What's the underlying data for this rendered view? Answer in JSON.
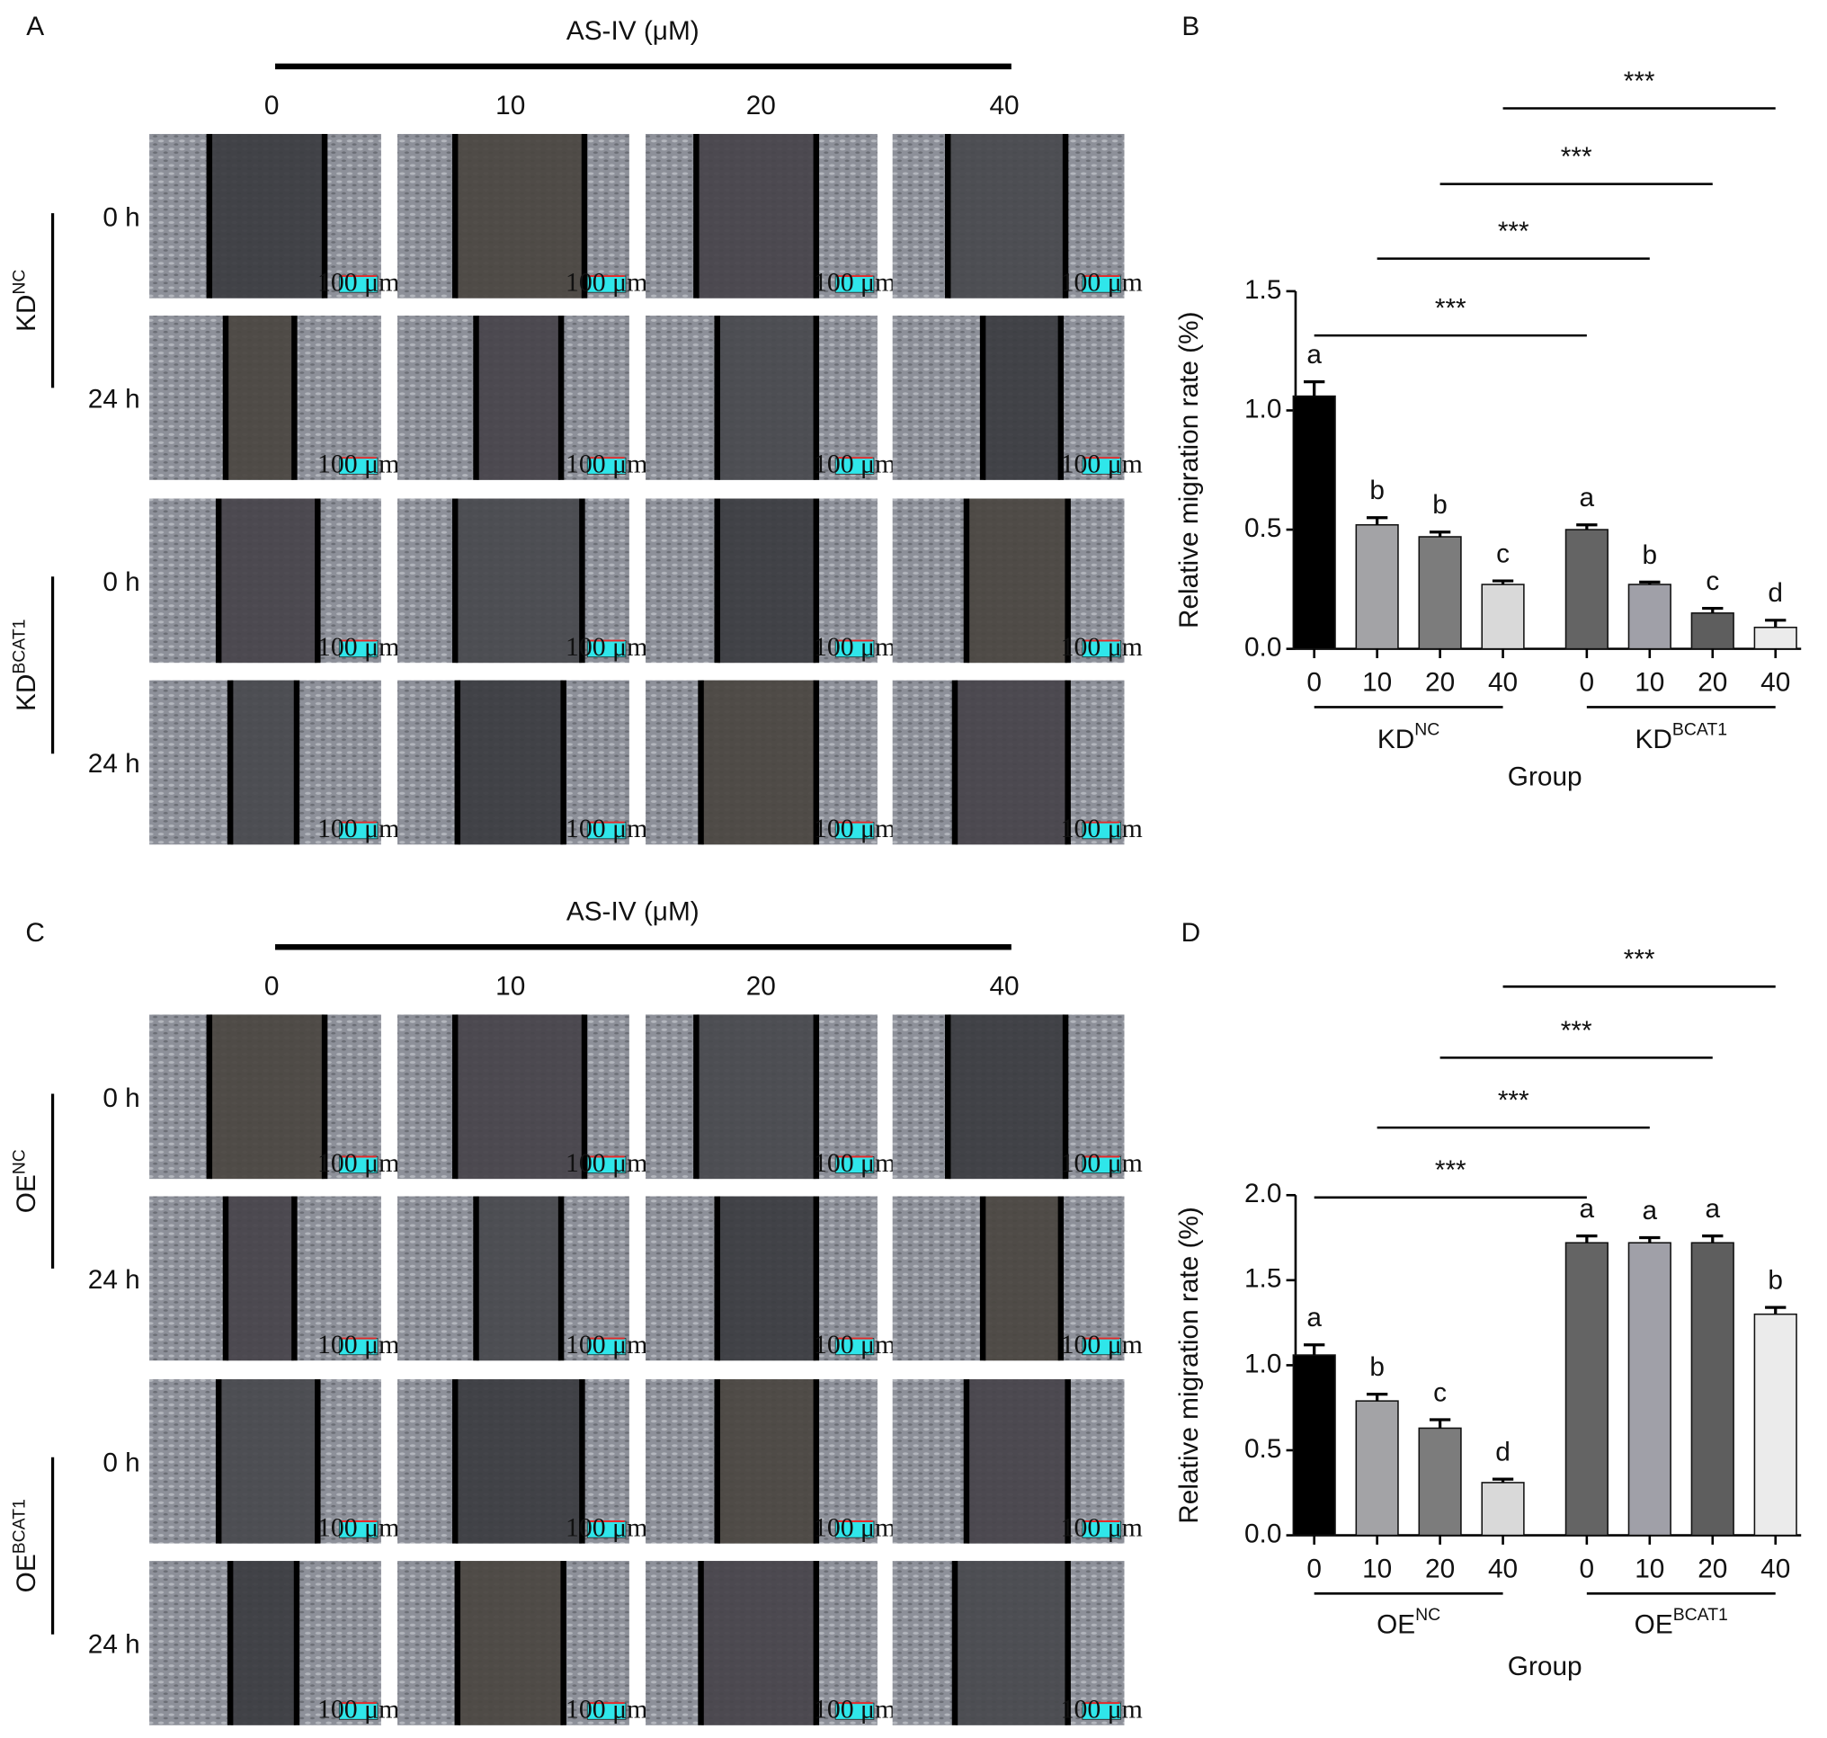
{
  "panel_labels": [
    "A",
    "B",
    "C",
    "D"
  ],
  "image_panels": [
    {
      "treatment_label": "AS-IV (μM)",
      "doses": [
        "0",
        "10",
        "20",
        "40"
      ],
      "times": [
        "0 h",
        "24 h"
      ],
      "scale_bar": "100 μm",
      "groups": [
        {
          "name": "KD",
          "superscript": "NC"
        },
        {
          "name": "KD",
          "superscript": "BCAT1"
        }
      ]
    },
    {
      "treatment_label": "AS-IV (μM)",
      "doses": [
        "0",
        "10",
        "20",
        "40"
      ],
      "times": [
        "0 h",
        "24 h"
      ],
      "scale_bar": "100 μm",
      "groups": [
        {
          "name": "OE",
          "superscript": "NC"
        },
        {
          "name": "OE",
          "superscript": "BCAT1"
        }
      ]
    }
  ],
  "chart_data": [
    {
      "type": "bar",
      "y_label": "Relative migration rate (%)",
      "x_label": "Group",
      "categories": [
        "0",
        "10",
        "20",
        "40",
        "0",
        "10",
        "20",
        "40"
      ],
      "groups": [
        {
          "name": "KD",
          "superscript": "NC"
        },
        {
          "name": "KD",
          "superscript": "BCAT1"
        }
      ],
      "values": [
        1.06,
        0.52,
        0.47,
        0.27,
        0.5,
        0.27,
        0.15,
        0.09
      ],
      "errors": [
        0.06,
        0.03,
        0.02,
        0.015,
        0.02,
        0.01,
        0.02,
        0.03
      ],
      "annotations": [
        "a",
        "b",
        "b",
        "c",
        "a",
        "b",
        "c",
        "d"
      ],
      "colors": [
        "#000000",
        "#a3a3a6",
        "#7c7c7c",
        "#d9d9d9",
        "#646464",
        "#a0a0a8",
        "#5e5e5e",
        "#ebebeb"
      ],
      "significance": [
        "***",
        "***",
        "***",
        "***"
      ],
      "ylim": [
        0,
        1.5
      ],
      "yticks": [
        {
          "value": 0,
          "label": "0.0"
        },
        0.5,
        {
          "value": 1,
          "label": "1.0"
        },
        1.5
      ]
    },
    {
      "type": "bar",
      "y_label": "Relative migration rate (%)",
      "x_label": "Group",
      "categories": [
        "0",
        "10",
        "20",
        "40",
        "0",
        "10",
        "20",
        "40"
      ],
      "groups": [
        {
          "name": "OE",
          "superscript": "NC"
        },
        {
          "name": "OE",
          "superscript": "BCAT1"
        }
      ],
      "values": [
        1.06,
        0.79,
        0.63,
        0.31,
        1.72,
        1.72,
        1.72,
        1.3
      ],
      "errors": [
        0.06,
        0.04,
        0.05,
        0.02,
        0.04,
        0.03,
        0.04,
        0.04
      ],
      "annotations": [
        "a",
        "b",
        "c",
        "d",
        "a",
        "a",
        "a",
        "b"
      ],
      "colors": [
        "#000000",
        "#a3a3a6",
        "#7c7c7c",
        "#d9d9d9",
        "#646464",
        "#a0a0a8",
        "#5e5e5e",
        "#ebebeb"
      ],
      "significance": [
        "***",
        "***",
        "***",
        "***"
      ],
      "ylim": [
        0,
        2
      ],
      "yticks": [
        {
          "value": 0,
          "label": "0.0"
        },
        0.5,
        {
          "value": 1,
          "label": "1.0"
        },
        1.5,
        {
          "value": 2,
          "label": "2.0"
        }
      ]
    }
  ]
}
